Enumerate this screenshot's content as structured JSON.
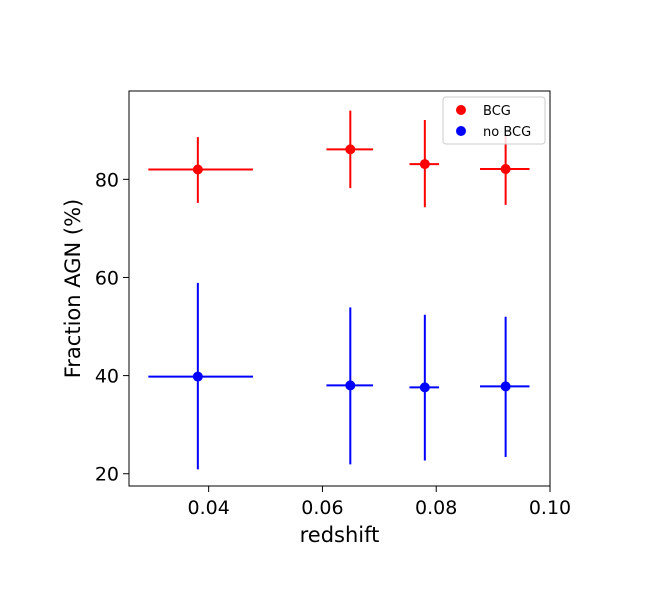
{
  "chart_data": {
    "type": "scatter",
    "title": "",
    "xlabel": "redshift",
    "ylabel": "Fraction AGN (%)",
    "xlim": [
      0.026,
      0.1
    ],
    "ylim": [
      17.5,
      98
    ],
    "xticks": [
      0.04,
      0.06,
      0.08,
      0.1
    ],
    "xtick_labels": [
      "0.04",
      "0.06",
      "0.08",
      "0.10"
    ],
    "yticks": [
      20,
      40,
      60,
      80
    ],
    "ytick_labels": [
      "20",
      "40",
      "60",
      "80"
    ],
    "grid": false,
    "legend_position": "top-right",
    "series": [
      {
        "name": "BCG",
        "color": "#ff0000",
        "points": [
          {
            "x": 0.0381,
            "y": 82.0,
            "xerr_low": 0.0087,
            "xerr_high": 0.0097,
            "yerr_low": 6.8,
            "yerr_high": 6.6
          },
          {
            "x": 0.0649,
            "y": 86.1,
            "xerr_low": 0.0042,
            "xerr_high": 0.004,
            "yerr_low": 7.9,
            "yerr_high": 7.9
          },
          {
            "x": 0.078,
            "y": 83.1,
            "xerr_low": 0.0027,
            "xerr_high": 0.0025,
            "yerr_low": 8.8,
            "yerr_high": 9.0
          },
          {
            "x": 0.0922,
            "y": 82.1,
            "xerr_low": 0.0045,
            "xerr_high": 0.0042,
            "yerr_low": 7.3,
            "yerr_high": 6.9
          }
        ]
      },
      {
        "name": "no BCG",
        "color": "#0000ff",
        "points": [
          {
            "x": 0.0381,
            "y": 39.8,
            "xerr_low": 0.0087,
            "xerr_high": 0.0097,
            "yerr_low": 18.9,
            "yerr_high": 19.1
          },
          {
            "x": 0.0649,
            "y": 38.0,
            "xerr_low": 0.0042,
            "xerr_high": 0.004,
            "yerr_low": 16.1,
            "yerr_high": 15.9
          },
          {
            "x": 0.078,
            "y": 37.6,
            "xerr_low": 0.0027,
            "xerr_high": 0.0025,
            "yerr_low": 14.9,
            "yerr_high": 14.8
          },
          {
            "x": 0.0922,
            "y": 37.8,
            "xerr_low": 0.0045,
            "xerr_high": 0.0042,
            "yerr_low": 14.4,
            "yerr_high": 14.2
          }
        ]
      }
    ]
  }
}
